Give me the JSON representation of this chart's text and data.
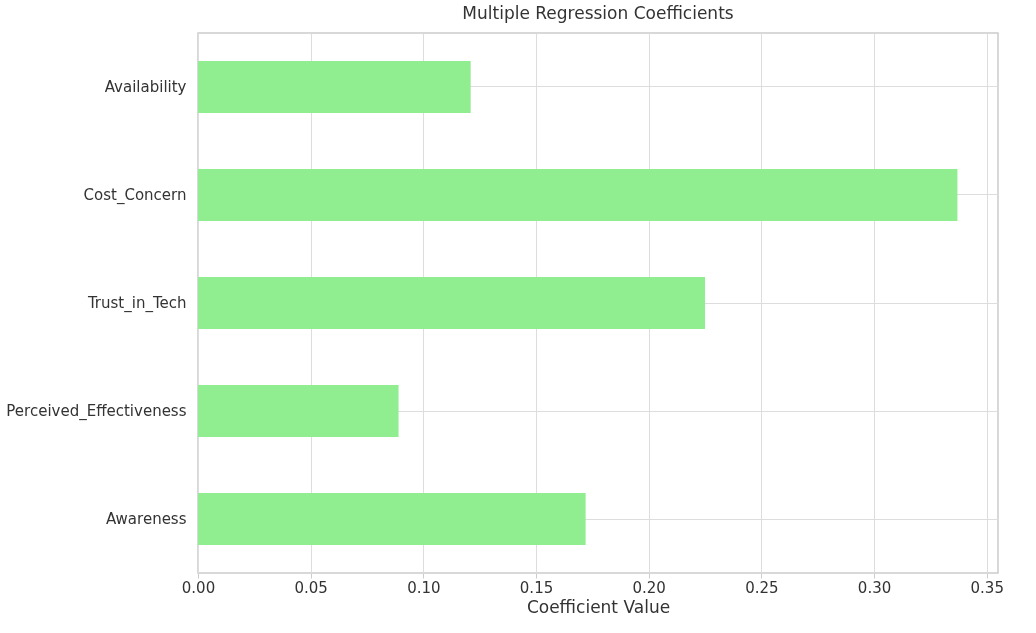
{
  "chart_data": {
    "type": "bar",
    "orientation": "horizontal",
    "title": "Multiple Regression Coefficients",
    "xlabel": "Coefficient Value",
    "categories": [
      "Availability",
      "Cost_Concern",
      "Trust_in_Tech",
      "Perceived_Effectiveness",
      "Awareness"
    ],
    "values": [
      0.121,
      0.337,
      0.225,
      0.089,
      0.172
    ],
    "color": "#90ee90",
    "xlim": [
      0,
      0.355
    ],
    "xticks": [
      {
        "value": 0,
        "label": "0.00"
      },
      {
        "value": 0.05,
        "label": "0.05"
      },
      {
        "value": 0.1,
        "label": "0.10"
      },
      {
        "value": 0.15,
        "label": "0.15"
      },
      {
        "value": 0.2,
        "label": "0.20"
      },
      {
        "value": 0.25,
        "label": "0.25"
      },
      {
        "value": 0.3,
        "label": "0.30"
      },
      {
        "value": 0.35,
        "label": "0.35"
      }
    ],
    "grid": true
  }
}
